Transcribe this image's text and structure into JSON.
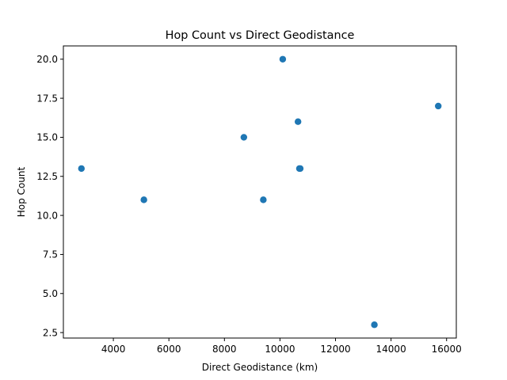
{
  "chart_data": {
    "type": "scatter",
    "title": "Hop Count vs Direct Geodistance",
    "xlabel": "Direct Geodistance (km)",
    "ylabel": "Hop Count",
    "xlim": [
      2200,
      16350
    ],
    "ylim": [
      2.15,
      20.85
    ],
    "grid": false,
    "marker_color": "#1f77b4",
    "xticks": [
      4000,
      6000,
      8000,
      10000,
      12000,
      14000,
      16000
    ],
    "xtick_labels": [
      "4000",
      "6000",
      "8000",
      "10000",
      "12000",
      "14000",
      "16000"
    ],
    "yticks": [
      2.5,
      5.0,
      7.5,
      10.0,
      12.5,
      15.0,
      17.5,
      20.0
    ],
    "ytick_labels": [
      "2.5",
      "5.0",
      "7.5",
      "10.0",
      "12.5",
      "15.0",
      "17.5",
      "20.0"
    ],
    "points": [
      {
        "x": 2850,
        "y": 13
      },
      {
        "x": 5100,
        "y": 11
      },
      {
        "x": 8700,
        "y": 15
      },
      {
        "x": 9400,
        "y": 11
      },
      {
        "x": 10100,
        "y": 20
      },
      {
        "x": 10650,
        "y": 16
      },
      {
        "x": 10700,
        "y": 13
      },
      {
        "x": 10730,
        "y": 13
      },
      {
        "x": 13400,
        "y": 3
      },
      {
        "x": 15700,
        "y": 17
      }
    ]
  }
}
